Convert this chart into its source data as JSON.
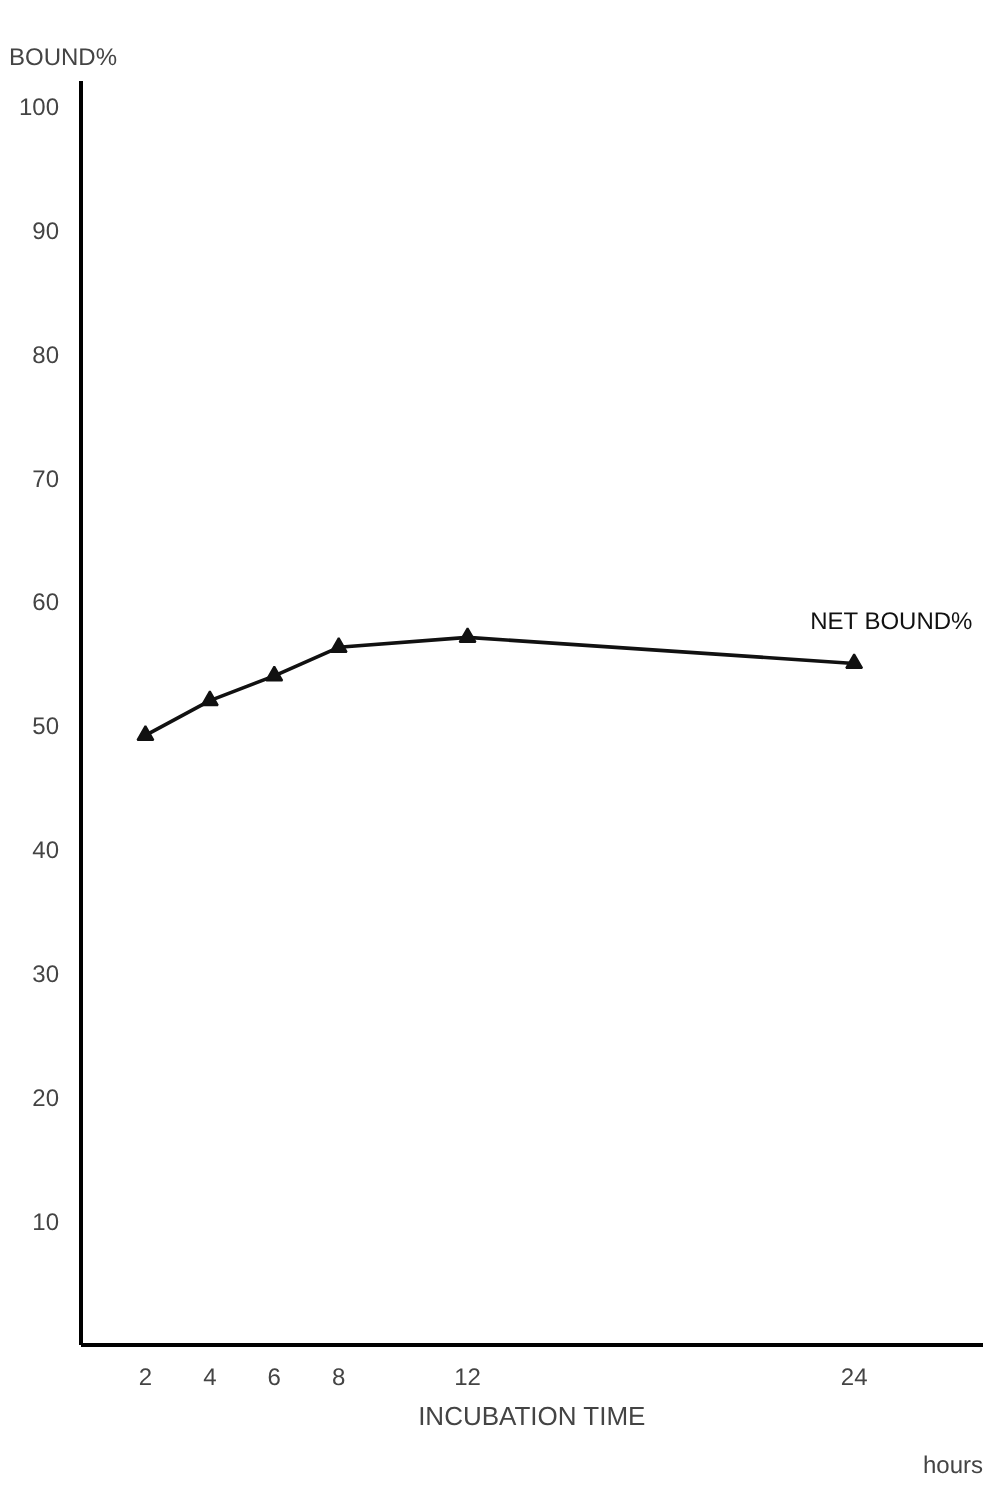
{
  "chart_data": {
    "type": "line",
    "xlabel": "INCUBATION TIME",
    "ylabel": "BOUND%",
    "x": [
      2,
      4,
      6,
      8,
      12,
      24
    ],
    "series": [
      {
        "name": "NET BOUND%",
        "color": "#111111",
        "values": [
          49.2,
          52.0,
          54.0,
          56.3,
          57.1,
          55.0
        ]
      }
    ],
    "xlim": [
      0,
      28
    ],
    "xticks": [
      2,
      4,
      6,
      8,
      12,
      24
    ],
    "ylim": [
      0,
      102
    ],
    "yticks": [
      10,
      20,
      30,
      40,
      50,
      60,
      70,
      80,
      90,
      100
    ],
    "annotations": [
      "hours"
    ],
    "marker": "triangle",
    "line_style": "solid",
    "grid": false
  }
}
